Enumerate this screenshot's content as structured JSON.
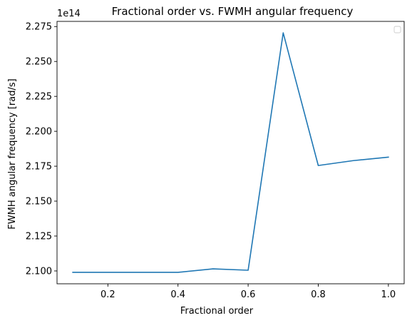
{
  "chart_data": {
    "type": "line",
    "title": "Fractional order vs. FWMH angular frequency",
    "xlabel": "Fractional order",
    "ylabel": "FWMH angular frequency [rad/s]",
    "y_offset_label": "1e14",
    "xlim": [
      0.055,
      1.045
    ],
    "ylim": [
      2.0908,
      2.2787
    ],
    "x_ticks": [
      0.2,
      0.4,
      0.6,
      0.8,
      1.0
    ],
    "x_tick_labels": [
      "0.2",
      "0.4",
      "0.6",
      "0.8",
      "1.0"
    ],
    "y_ticks": [
      2.1,
      2.125,
      2.15,
      2.175,
      2.2,
      2.225,
      2.25,
      2.275
    ],
    "y_tick_labels": [
      "2.100",
      "2.125",
      "2.150",
      "2.175",
      "2.200",
      "2.225",
      "2.250",
      "2.275"
    ],
    "series": [
      {
        "x": [
          0.1,
          0.2,
          0.3,
          0.4,
          0.5,
          0.6,
          0.7,
          0.8,
          0.9,
          1.0
        ],
        "values": [
          2.099,
          2.099,
          2.099,
          2.099,
          2.1015,
          2.1005,
          2.2705,
          2.1755,
          2.179,
          2.1815
        ],
        "color": "#1f77b4"
      }
    ],
    "legend": {
      "placement": "upper-right",
      "entries": []
    },
    "grid": false
  }
}
